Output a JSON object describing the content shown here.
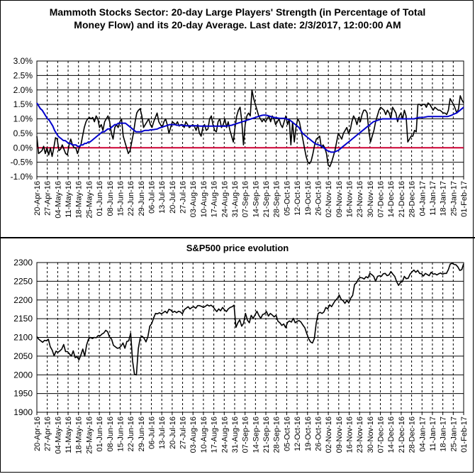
{
  "chart_data": [
    {
      "type": "line",
      "title": "Mammoth Stocks Sector: 20-day Large Players' Strength (in Percentage of Total",
      "subtitle": "Money Flow) and its 20-day Average. Last date: 2/3/2017, 12:00:00 AM",
      "xlabel": "",
      "ylabel": "",
      "ylim": [
        -1.0,
        3.0
      ],
      "yticks": [
        "3.0%",
        "2.5%",
        "2.0%",
        "1.5%",
        "1.0%",
        "0.5%",
        "0.0%",
        "-0.5%",
        "-1.0%"
      ],
      "xticks": [
        "20-Apr-16",
        "27-Apr-16",
        "04-May-16",
        "11-May-16",
        "18-May-16",
        "25-May-16",
        "01-Jun-16",
        "08-Jun-16",
        "15-Jun-16",
        "22-Jun-16",
        "29-Jun-16",
        "06-Jul-16",
        "13-Jul-16",
        "20-Jul-16",
        "27-Jul-16",
        "03-Aug-16",
        "10-Aug-16",
        "17-Aug-16",
        "24-Aug-16",
        "31-Aug-16",
        "07-Sep-16",
        "14-Sep-16",
        "21-Sep-16",
        "28-Sep-16",
        "05-Oct-16",
        "12-Oct-16",
        "19-Oct-16",
        "26-Oct-16",
        "02-Nov-16",
        "09-Nov-16",
        "16-Nov-16",
        "23-Nov-16",
        "30-Nov-16",
        "07-Dec-16",
        "14-Dec-16",
        "21-Dec-16",
        "28-Dec-16",
        "04-Jan-17",
        "11-Jan-17",
        "18-Jan-17",
        "25-Jan-17",
        "01-Feb-17"
      ],
      "grid": true,
      "zero_line_color": "#cc0033",
      "series": [
        {
          "color": "#000000",
          "values": [
            0.4,
            -0.2,
            -0.15,
            -0.1,
            0.05,
            -0.2,
            0.0,
            -0.25,
            0.0,
            -0.3,
            0.0,
            0.35,
            0.3,
            -0.1,
            -0.05,
            0.1,
            -0.05,
            -0.2,
            -0.25,
            0.1,
            0.3,
            0.1,
            0.0,
            0.0,
            -0.2,
            0.0,
            0.1,
            0.4,
            0.7,
            0.9,
            1.0,
            1.05,
            1.0,
            1.05,
            0.9,
            1.1,
            1.0,
            0.7,
            0.8,
            0.6,
            0.9,
            1.0,
            1.1,
            0.9,
            0.5,
            0.3,
            0.7,
            0.8,
            0.7,
            0.9,
            1.0,
            0.4,
            0.2,
            0.0,
            -0.2,
            -0.1,
            0.2,
            0.5,
            0.9,
            1.2,
            1.3,
            1.35,
            1.1,
            0.7,
            0.8,
            0.9,
            1.0,
            0.8,
            0.7,
            0.9,
            1.05,
            1.2,
            0.9,
            0.8,
            0.7,
            0.9,
            1.0,
            0.8,
            0.5,
            0.7,
            0.9,
            0.85,
            0.8,
            0.9,
            0.75,
            0.8,
            0.8,
            0.7,
            0.9,
            0.8,
            0.7,
            0.75,
            0.8,
            0.75,
            0.6,
            0.8,
            0.5,
            0.4,
            0.7,
            0.8,
            0.6,
            0.65,
            1.0,
            1.1,
            0.8,
            0.6,
            0.55,
            0.9,
            1.0,
            0.7,
            0.8,
            1.0,
            0.7,
            0.9,
            0.6,
            0.4,
            0.2,
            0.7,
            1.1,
            1.3,
            1.4,
            0.9,
            0.1,
            0.8,
            1.1,
            1.2,
            1.1,
            2.0,
            1.7,
            1.5,
            1.3,
            1.1,
            1.0,
            0.9,
            1.0,
            0.9,
            1.0,
            1.1,
            0.9,
            1.1,
            1.0,
            0.8,
            0.9,
            1.0,
            0.8,
            0.7,
            0.9,
            1.1,
            0.8,
            1.0,
            0.1,
            0.9,
            0.2,
            0.7,
            1.0,
            0.9,
            0.6,
            0.3,
            0.0,
            -0.3,
            -0.5,
            -0.55,
            -0.45,
            -0.2,
            0.1,
            0.3,
            0.35,
            0.4,
            0.0,
            0.1,
            0.0,
            -0.2,
            -0.6,
            -0.65,
            -0.5,
            -0.3,
            -0.1,
            0.2,
            0.5,
            0.4,
            0.3,
            0.5,
            0.6,
            0.7,
            0.5,
            0.6,
            0.9,
            1.1,
            1.0,
            0.8,
            1.05,
            0.9,
            1.15,
            1.3,
            1.3,
            1.2,
            0.6,
            0.2,
            0.4,
            0.6,
            0.9,
            1.1,
            1.3,
            1.4,
            1.35,
            1.3,
            1.15,
            1.3,
            1.2,
            1.0,
            1.4,
            1.3,
            1.2,
            0.9,
            1.1,
            1.2,
            1.0,
            1.3,
            1.1,
            0.2,
            0.3,
            0.4,
            0.4,
            0.6,
            0.55,
            1.5,
            1.5,
            1.45,
            1.5,
            1.5,
            1.4,
            1.55,
            1.5,
            1.4,
            1.3,
            1.4,
            1.35,
            1.3,
            1.3,
            1.25,
            1.2,
            1.2,
            1.15,
            1.3,
            1.7,
            1.6,
            1.5,
            1.35,
            1.2,
            1.35,
            1.8,
            1.65,
            1.55
          ]
        },
        {
          "color": "#0000cc",
          "values": [
            1.55,
            1.45,
            1.35,
            1.3,
            1.2,
            1.1,
            1.0,
            0.95,
            0.85,
            0.75,
            0.6,
            0.5,
            0.4,
            0.35,
            0.3,
            0.25,
            0.25,
            0.2,
            0.15,
            0.15,
            0.1,
            0.1,
            0.1,
            0.05,
            0.05,
            0.1,
            0.1,
            0.15,
            0.15,
            0.2,
            0.2,
            0.25,
            0.3,
            0.35,
            0.4,
            0.45,
            0.5,
            0.55,
            0.55,
            0.6,
            0.65,
            0.65,
            0.7,
            0.75,
            0.8,
            0.8,
            0.85,
            0.85,
            0.85,
            0.85,
            0.85,
            0.8,
            0.75,
            0.7,
            0.65,
            0.6,
            0.55,
            0.55,
            0.55,
            0.55,
            0.58,
            0.6,
            0.6,
            0.6,
            0.62,
            0.62,
            0.63,
            0.64,
            0.65,
            0.68,
            0.7,
            0.72,
            0.74,
            0.76,
            0.78,
            0.8,
            0.8,
            0.8,
            0.8,
            0.78,
            0.78,
            0.78,
            0.78,
            0.78,
            0.76,
            0.76,
            0.76,
            0.76,
            0.76,
            0.76,
            0.76,
            0.76,
            0.75,
            0.75,
            0.75,
            0.75,
            0.75,
            0.75,
            0.75,
            0.75,
            0.75,
            0.75,
            0.75,
            0.75,
            0.75,
            0.75,
            0.75,
            0.75,
            0.76,
            0.77,
            0.78,
            0.8,
            0.82,
            0.84,
            0.86,
            0.88,
            0.9,
            0.92,
            0.94,
            0.96,
            0.98,
            1.0,
            1.02,
            1.04,
            1.06,
            1.08,
            1.1,
            1.12,
            1.13,
            1.13,
            1.12,
            1.1,
            1.08,
            1.06,
            1.05,
            1.04,
            1.03,
            1.02,
            1.02,
            1.02,
            1.02,
            1.0,
            0.98,
            0.95,
            0.9,
            0.85,
            0.8,
            0.75,
            0.7,
            0.6,
            0.5,
            0.45,
            0.4,
            0.35,
            0.3,
            0.25,
            0.2,
            0.15,
            0.12,
            0.1,
            0.08,
            0.05,
            0.0,
            -0.05,
            -0.1,
            -0.12,
            -0.15,
            -0.15,
            -0.15,
            -0.12,
            -0.1,
            -0.05,
            0.0,
            0.05,
            0.1,
            0.15,
            0.2,
            0.25,
            0.3,
            0.35,
            0.4,
            0.45,
            0.5,
            0.55,
            0.6,
            0.65,
            0.7,
            0.75,
            0.8,
            0.85,
            0.9,
            0.92,
            0.94,
            0.96,
            0.98,
            1.0,
            1.0,
            1.0,
            1.0,
            1.0,
            1.0,
            1.0,
            1.0,
            1.0,
            1.0,
            1.0,
            1.0,
            1.0,
            1.0,
            1.0,
            1.0,
            1.0,
            1.0,
            1.0,
            1.02,
            1.04,
            1.05,
            1.05,
            1.05,
            1.06,
            1.07,
            1.08,
            1.08,
            1.08,
            1.08,
            1.08,
            1.08,
            1.08,
            1.08,
            1.08,
            1.08,
            1.08,
            1.08,
            1.1,
            1.12,
            1.15,
            1.18,
            1.2,
            1.25,
            1.3,
            1.35,
            1.4
          ]
        }
      ]
    },
    {
      "type": "line",
      "title": "S&P500 price evolution",
      "xlabel": "",
      "ylabel": "",
      "ylim": [
        1900,
        2300
      ],
      "yticks": [
        "2300",
        "2250",
        "2200",
        "2150",
        "2100",
        "2050",
        "2000",
        "1950",
        "1900"
      ],
      "xticks": [
        "20-Apr-16",
        "27-Apr-16",
        "04-May-16",
        "11-May-16",
        "18-May-16",
        "25-May-16",
        "01-Jun-16",
        "08-Jun-16",
        "15-Jun-16",
        "22-Jun-16",
        "29-Jun-16",
        "06-Jul-16",
        "13-Jul-16",
        "20-Jul-16",
        "27-Jul-16",
        "03-Aug-16",
        "10-Aug-16",
        "17-Aug-16",
        "24-Aug-16",
        "31-Aug-16",
        "07-Sep-16",
        "14-Sep-16",
        "21-Sep-16",
        "28-Sep-16",
        "05-Oct-16",
        "12-Oct-16",
        "19-Oct-16",
        "26-Oct-16",
        "02-Nov-16",
        "09-Nov-16",
        "16-Nov-16",
        "23-Nov-16",
        "30-Nov-16",
        "07-Dec-16",
        "14-Dec-16",
        "21-Dec-16",
        "28-Dec-16",
        "04-Jan-17",
        "11-Jan-17",
        "18-Jan-17",
        "25-Jan-17",
        "01-Feb-17"
      ],
      "grid": true,
      "series": [
        {
          "color": "#000000",
          "values": [
            2102,
            2095,
            2091,
            2087,
            2092,
            2091,
            2095,
            2075,
            2066,
            2051,
            2063,
            2060,
            2064,
            2069,
            2081,
            2062,
            2062,
            2056,
            2050,
            2064,
            2046,
            2048,
            2040,
            2053,
            2069,
            2050,
            2080,
            2096,
            2100,
            2097,
            2100,
            2099,
            2105,
            2104,
            2109,
            2112,
            2119,
            2115,
            2100,
            2096,
            2079,
            2075,
            2071,
            2072,
            2077,
            2085,
            2071,
            2089,
            2091,
            2111,
            2037,
            2001,
            2000,
            2070,
            2099,
            2103,
            2098,
            2088,
            2102,
            2130,
            2137,
            2152,
            2164,
            2163,
            2166,
            2163,
            2166,
            2170,
            2165,
            2175,
            2173,
            2167,
            2170,
            2166,
            2170,
            2168,
            2163,
            2174,
            2178,
            2182,
            2176,
            2180,
            2182,
            2178,
            2185,
            2185,
            2183,
            2180,
            2183,
            2187,
            2184,
            2186,
            2182,
            2175,
            2169,
            2176,
            2171,
            2180,
            2174,
            2169,
            2176,
            2180,
            2182,
            2186,
            2127,
            2139,
            2147,
            2130,
            2138,
            2164,
            2146,
            2139,
            2159,
            2151,
            2160,
            2170,
            2159,
            2151,
            2161,
            2163,
            2169,
            2157,
            2164,
            2160,
            2155,
            2159,
            2143,
            2139,
            2132,
            2136,
            2126,
            2140,
            2144,
            2141,
            2151,
            2139,
            2143,
            2145,
            2141,
            2133,
            2126,
            2111,
            2097,
            2088,
            2085,
            2097,
            2139,
            2164,
            2167,
            2164,
            2168,
            2180,
            2176,
            2187,
            2182,
            2191,
            2199,
            2204,
            2213,
            2202,
            2198,
            2191,
            2199,
            2192,
            2205,
            2212,
            2241,
            2246,
            2256,
            2260,
            2259,
            2256,
            2262,
            2259,
            2271,
            2268,
            2263,
            2250,
            2263,
            2265,
            2263,
            2270,
            2271,
            2265,
            2267,
            2276,
            2269,
            2263,
            2249,
            2239,
            2247,
            2249,
            2263,
            2257,
            2258,
            2269,
            2275,
            2280,
            2274,
            2279,
            2271,
            2270,
            2264,
            2271,
            2268,
            2265,
            2274,
            2269,
            2270,
            2267,
            2270,
            2272,
            2269,
            2271,
            2271,
            2281,
            2296,
            2298,
            2295,
            2294,
            2288,
            2279,
            2281,
            2297
          ]
        }
      ]
    }
  ]
}
